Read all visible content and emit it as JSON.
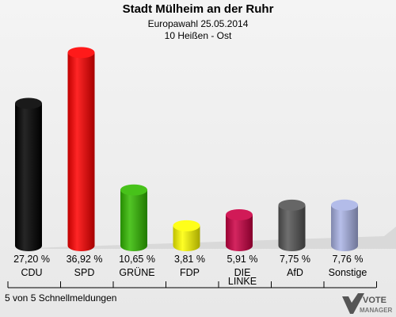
{
  "header": {
    "title": "Stadt Mülheim an der Ruhr",
    "subtitle": "Europawahl 25.05.2014",
    "district": "10 Heißen - Ost"
  },
  "footer": {
    "reports": "5 von 5 Schnellmeldungen"
  },
  "logo": {
    "line1": "VOTE",
    "line2": "MANAGER"
  },
  "chart_data": {
    "type": "bar",
    "categories": [
      "CDU",
      "SPD",
      "GRÜNE",
      "FDP",
      "DIE LINKE",
      "AfD",
      "Sonstige"
    ],
    "values": [
      27.2,
      36.92,
      10.65,
      3.81,
      5.91,
      7.75,
      7.76
    ],
    "value_labels": [
      "27,20 %",
      "36,92 %",
      "10,65 %",
      "3,81 %",
      "5,91 %",
      "7,75 %",
      "7,76 %"
    ],
    "colors": [
      "#000000",
      "#ff0000",
      "#33bb00",
      "#ffff00",
      "#cc0044",
      "#555555",
      "#aab4e6"
    ],
    "ylim": [
      0,
      40
    ]
  }
}
